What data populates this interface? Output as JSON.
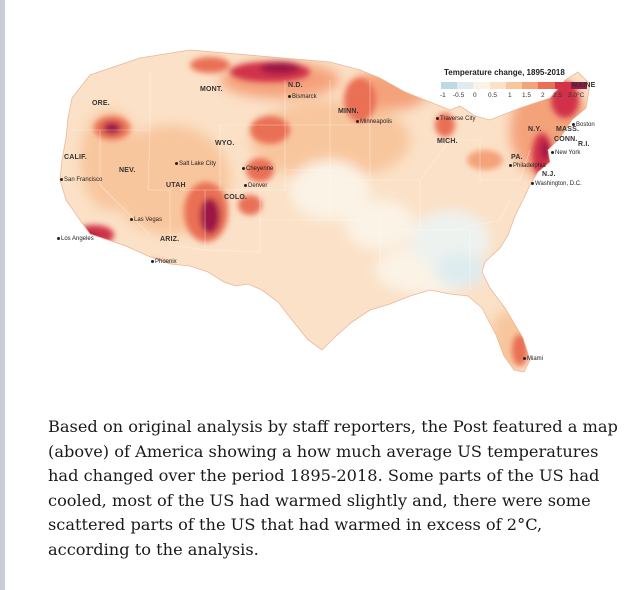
{
  "map": {
    "legend": {
      "title": "Temperature change, 1895-2018",
      "ticks": [
        "-1",
        "-0.5",
        "0",
        "0.5",
        "1",
        "1.5",
        "2",
        "2.5",
        "3.0°C"
      ],
      "colors": [
        "#bcd9e6",
        "#dfecef",
        "#fbf3e6",
        "#fbe1c7",
        "#f8c69d",
        "#f4a27a",
        "#ea6f55",
        "#d13348",
        "#9e1746"
      ]
    },
    "states": [
      "ORE.",
      "MONT.",
      "N.D.",
      "MINN.",
      "MAINE",
      "CALIF.",
      "NEV.",
      "WYO.",
      "UTAH",
      "COLO.",
      "ARIZ.",
      "MICH.",
      "N.Y.",
      "MASS.",
      "CONN.",
      "R.I.",
      "PA.",
      "N.J."
    ],
    "cities": [
      "Bismarck",
      "Minneapolis",
      "Traverse City",
      "Boston",
      "New York",
      "Philadelphia",
      "Washington, D.C.",
      "Salt Lake City",
      "Cheyenne",
      "Denver",
      "San Francisco",
      "Las Vegas",
      "Los Angeles",
      "Phoenix",
      "Miami"
    ]
  },
  "caption": "Based on original analysis by staff reporters, the Post featured a map (above) of America showing a how much average US temperatures had changed over the period 1895-2018. Some parts of the US had cooled, most of the US had warmed slightly and, there were some scattered parts of the US that had warmed in excess of 2°C, according to the analysis."
}
